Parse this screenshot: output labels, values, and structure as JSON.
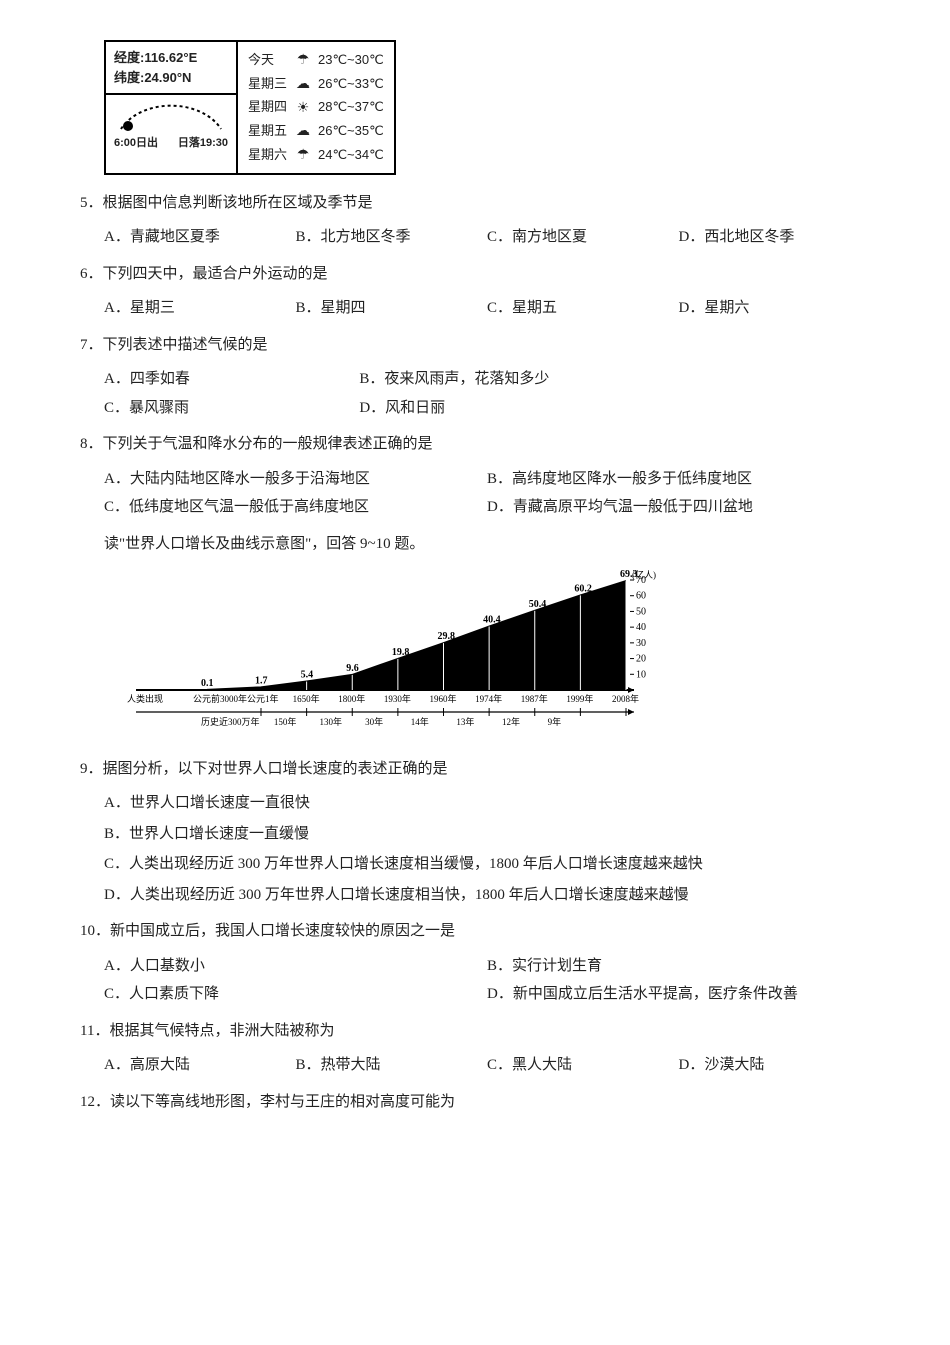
{
  "weather_box": {
    "lng_label": "经度:116.62°E",
    "lat_label": "纬度:24.90°N",
    "sunrise": "6:00日出",
    "sunset": "日落19:30",
    "rows": [
      {
        "day": "今天",
        "icon": "☂",
        "temp": "23℃~30℃"
      },
      {
        "day": "星期三",
        "icon": "☁",
        "temp": "26℃~33℃"
      },
      {
        "day": "星期四",
        "icon": "☀",
        "temp": "28℃~37℃"
      },
      {
        "day": "星期五",
        "icon": "☁",
        "temp": "26℃~35℃"
      },
      {
        "day": "星期六",
        "icon": "☂",
        "temp": "24℃~34℃"
      }
    ]
  },
  "q5": {
    "text": "5．根据图中信息判断该地所在区域及季节是",
    "opts": {
      "A": "A．青藏地区夏季",
      "B": "B．北方地区冬季",
      "C": "C．南方地区夏",
      "D": "D．西北地区冬季"
    }
  },
  "q6": {
    "text": "6．下列四天中，最适合户外运动的是",
    "opts": {
      "A": "A．星期三",
      "B": "B．星期四",
      "C": "C．星期五",
      "D": "D．星期六"
    }
  },
  "q7": {
    "text": "7．下列表述中描述气候的是",
    "optsRow1": {
      "A": "A．四季如春",
      "B": "B．夜来风雨声，花落知多少"
    },
    "optsRow2": {
      "C": "C．暴风骤雨",
      "D": "D．风和日丽"
    }
  },
  "q8": {
    "text": "8．下列关于气温和降水分布的一般规律表述正确的是",
    "optsRow1": {
      "A": "A．大陆内陆地区降水一般多于沿海地区",
      "B": "B．高纬度地区降水一般多于低纬度地区"
    },
    "optsRow2": {
      "C": "C．低纬度地区气温一般低于高纬度地区",
      "D": "D．青藏高原平均气温一般低于四川盆地"
    }
  },
  "intro_9_10": "读\"世界人口增长及曲线示意图\"，回答 9~10 题。",
  "pop_chart": {
    "type": "area-line",
    "y_unit": "(亿人)",
    "ylim": [
      0,
      70
    ],
    "yticks": [
      10,
      20,
      30,
      40,
      50,
      60,
      70
    ],
    "points": [
      {
        "x_label": "人类出现",
        "value": null
      },
      {
        "x_label": "公元前3000年",
        "value": 0.1
      },
      {
        "x_label": "公元1年",
        "value": 1.7
      },
      {
        "x_label": "1650年",
        "value": 5.4
      },
      {
        "x_label": "1800年",
        "value": 9.6
      },
      {
        "x_label": "1930年",
        "value": 19.8
      },
      {
        "x_label": "1960年",
        "value": 29.8
      },
      {
        "x_label": "1974年",
        "value": 40.4
      },
      {
        "x_label": "1987年",
        "value": 50.4
      },
      {
        "x_label": "1999年",
        "value": 60.2
      },
      {
        "x_label": "2008年",
        "value": 69.3
      }
    ],
    "interval_labels": [
      "历史近300万年",
      "",
      "150年",
      "130年",
      "30年",
      "14年",
      "13年",
      "12年",
      "9年"
    ],
    "left_caption": "历史近300万年",
    "fill_color": "#000000",
    "line_color": "#000000",
    "background_color": "#ffffff",
    "text_color": "#000000",
    "label_fontsize": 9,
    "value_fontsize": 10
  },
  "q9": {
    "text": "9．据图分析，以下对世界人口增长速度的表述正确的是",
    "opts": {
      "A": "A．世界人口增长速度一直很快",
      "B": "B．世界人口增长速度一直缓慢",
      "C": "C．人类出现经历近 300 万年世界人口增长速度相当缓慢，1800 年后人口增长速度越来越快",
      "D": "D．人类出现经历近 300 万年世界人口增长速度相当快，1800 年后人口增长速度越来越慢"
    }
  },
  "q10": {
    "text": "10．新中国成立后，我国人口增长速度较快的原因之一是",
    "optsRow1": {
      "A": "A．人口基数小",
      "B": "B．实行计划生育"
    },
    "optsRow2": {
      "C": "C．人口素质下降",
      "D": "D．新中国成立后生活水平提高，医疗条件改善"
    }
  },
  "q11": {
    "text": "11．根据其气候特点，非洲大陆被称为",
    "opts": {
      "A": "A．高原大陆",
      "B": "B．热带大陆",
      "C": "C．黑人大陆",
      "D": "D．沙漠大陆"
    }
  },
  "q12": {
    "text": "12．读以下等高线地形图，李村与王庄的相对高度可能为"
  }
}
